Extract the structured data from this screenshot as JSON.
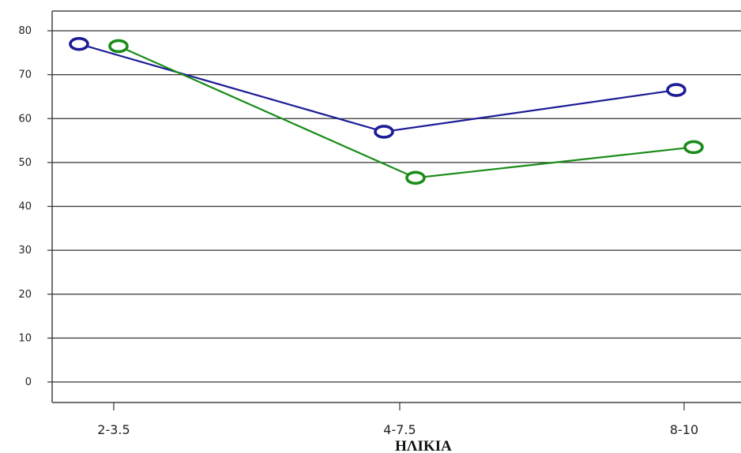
{
  "chart_data": {
    "type": "line",
    "xlabel": "ΗΛΙΚΙΑ",
    "ylabel": "",
    "title": "",
    "categories": [
      "2-3.5",
      "4-7.5",
      "8-10"
    ],
    "ylim": [
      -4,
      82
    ],
    "yticks": [
      0,
      10,
      20,
      30,
      40,
      50,
      60,
      70,
      80
    ],
    "grid": true,
    "legend": "none",
    "series": [
      {
        "color": "#1c1c96",
        "values": [
          77,
          57,
          66.5
        ]
      },
      {
        "color": "#1a8c1a",
        "values": [
          76.5,
          46.5,
          53.5
        ]
      }
    ]
  }
}
